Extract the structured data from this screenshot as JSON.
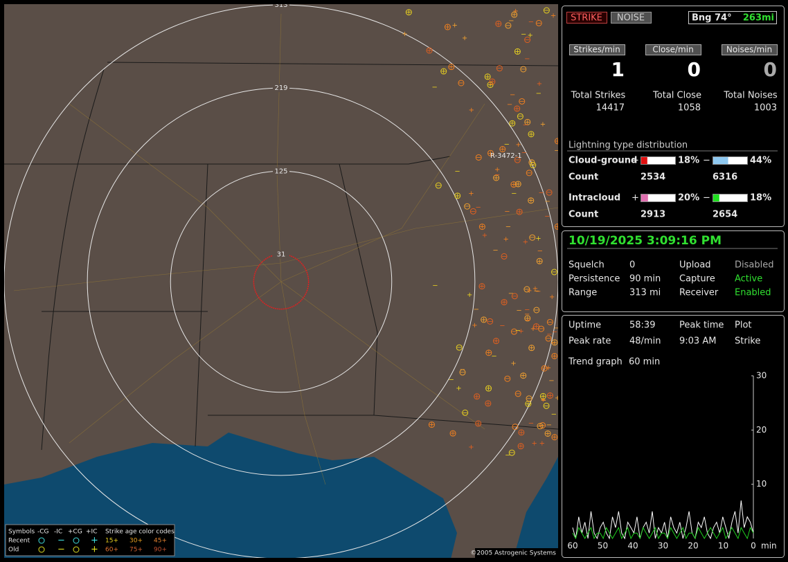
{
  "map": {
    "rings": [
      313,
      219,
      125,
      31
    ],
    "annotation": "R-3472-1"
  },
  "status": {
    "strike": "STRIKE",
    "noise": "NOISE",
    "bearing": "Bng 74°",
    "distance": "263mi"
  },
  "rates": [
    {
      "label": "Strikes/min",
      "value": 1
    },
    {
      "label": "Close/min",
      "value": 0
    },
    {
      "label": "Noises/min",
      "value": 0
    }
  ],
  "totals": [
    {
      "label": "Total Strikes",
      "value": 14417
    },
    {
      "label": "Total Close",
      "value": 1058
    },
    {
      "label": "Total Noises",
      "value": 1003
    }
  ],
  "distribution": {
    "title": "Lightning type distribution",
    "plus": "+",
    "minus": "−",
    "count_label": "Count",
    "rows": [
      {
        "label": "Cloud-ground",
        "pos": {
          "pct": 18,
          "label": "18%"
        },
        "neg": {
          "pct": 44,
          "label": "44%"
        },
        "pos_count": 2534,
        "neg_count": 6316,
        "pos_color": "#e01010",
        "neg_color": "#8ec8f0"
      },
      {
        "label": "Intracloud",
        "pos": {
          "pct": 20,
          "label": "20%"
        },
        "neg": {
          "pct": 18,
          "label": "18%"
        },
        "pos_count": 2913,
        "neg_count": 2654,
        "pos_color": "#e070b0",
        "neg_color": "#20e020"
      }
    ]
  },
  "datetime": "10/19/2025 3:09:16 PM",
  "settings": [
    [
      "Squelch",
      "0",
      "Upload",
      "Disabled"
    ],
    [
      "Persistence",
      "90 min",
      "Capture",
      "Active"
    ],
    [
      "Range",
      "313 mi",
      "Receiver",
      "Enabled"
    ]
  ],
  "stats": [
    [
      "Uptime",
      "58:39",
      "Peak time",
      "Plot"
    ],
    [
      "Peak rate",
      "48/min",
      "9:03 AM",
      "Strike"
    ]
  ],
  "trend": {
    "label": "Trend graph",
    "value": "60 min",
    "unit": "min",
    "ylim": [
      0,
      30
    ],
    "yticks": [
      10,
      20,
      30
    ],
    "xlim": [
      60,
      0
    ],
    "xticks": [
      60,
      50,
      40,
      30,
      20,
      10,
      0
    ],
    "series": [
      {
        "color": "#ffffff",
        "values": [
          2,
          0,
          4,
          1,
          3,
          0,
          5,
          1,
          0,
          2,
          3,
          1,
          0,
          4,
          2,
          5,
          1,
          0,
          3,
          2,
          1,
          4,
          0,
          2,
          3,
          1,
          5,
          0,
          2,
          1,
          3,
          0,
          4,
          2,
          1,
          3,
          0,
          2,
          5,
          1,
          0,
          3,
          2,
          4,
          1,
          0,
          2,
          3,
          1,
          4,
          2,
          0,
          3,
          5,
          1,
          7,
          2,
          4,
          3,
          1
        ]
      },
      {
        "color": "#20d020",
        "values": [
          1,
          0,
          2,
          1,
          0,
          1,
          2,
          0,
          1,
          1,
          0,
          2,
          1,
          0,
          1,
          2,
          0,
          1,
          2,
          0,
          1,
          1,
          0,
          2,
          1,
          0,
          1,
          2,
          0,
          1,
          1,
          0,
          2,
          1,
          0,
          1,
          2,
          0,
          1,
          1,
          0,
          2,
          1,
          0,
          1,
          2,
          1,
          0,
          1,
          2,
          0,
          1,
          2,
          1,
          0,
          2,
          1,
          0,
          2,
          1
        ]
      }
    ]
  },
  "legend": {
    "symbols": "Symbols",
    "types": [
      "-CG",
      "-IC",
      "+CG",
      "+IC"
    ],
    "age_title": "Strike age color codes",
    "recent": "Recent",
    "old": "Old",
    "ages": [
      "15+",
      "30+",
      "45+",
      "60+",
      "75+",
      "90+"
    ]
  },
  "copyright": "©2005 Astrogenic Systems"
}
